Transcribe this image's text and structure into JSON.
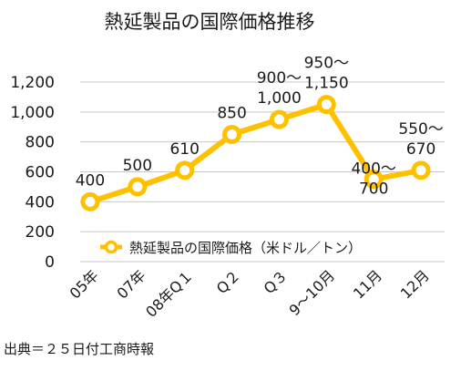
{
  "chart_data": {
    "type": "line",
    "title": "熱延製品の国際価格推移",
    "categories": [
      "05年",
      "07年",
      "08年Q１",
      "Q２",
      "Q３",
      "9～10月",
      "11月",
      "12月"
    ],
    "series": [
      {
        "name": "熱延製品の国際価格（米ドル／トン）",
        "values": [
          400,
          500,
          610,
          850,
          950,
          1050,
          550,
          610
        ],
        "data_labels": [
          [
            "400"
          ],
          [
            "500"
          ],
          [
            "610"
          ],
          [
            "850"
          ],
          [
            "900～",
            "1,000"
          ],
          [
            "950～",
            "1,150"
          ],
          [
            "400～",
            "700"
          ],
          [
            "550～",
            "670"
          ]
        ]
      }
    ],
    "yticks": [
      "0",
      "200",
      "400",
      "600",
      "800",
      "1,000",
      "1,200"
    ],
    "ylim": [
      0,
      1200
    ],
    "grid": true,
    "legend_position": "bottom-inside",
    "line_color": "#FFC000",
    "marker_fill": "#ffffff",
    "source": "出典＝２５日付工商時報"
  }
}
